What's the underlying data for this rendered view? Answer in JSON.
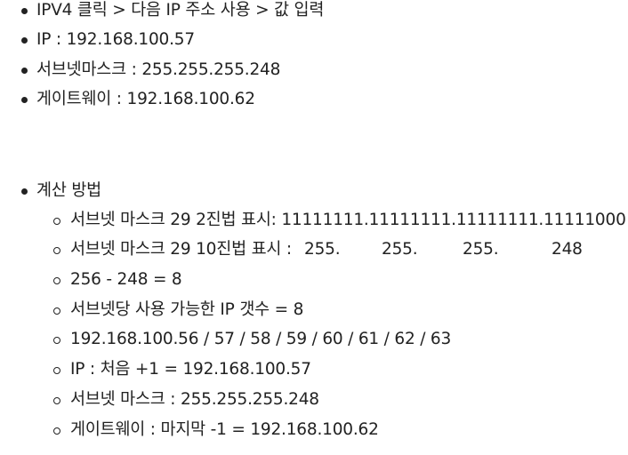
{
  "items_top": [
    "IPV4 클릭 > 다음 IP 주소 사용 > 값 입력",
    "IP : 192.168.100.57",
    "서브넷마스크 : 255.255.255.248",
    "게이트웨이 : 192.168.100.62"
  ],
  "calc": {
    "heading": "계산 방법",
    "binary": "서브넷 마스크 29 2진법 표시: 11111111.11111111.11111111.11111000",
    "decimal_label": "서브넷 마스크 29 10진법 표시 :",
    "decimal_octets": [
      "255.",
      "255.",
      "255.",
      "248"
    ],
    "subtraction": "256 - 248 = 8",
    "host_count": "서브넷당 사용 가능한 IP 갯수 = 8",
    "ip_range": "192.168.100.56 / 57 / 58 / 59 / 60 / 61 / 62 / 63",
    "first_ip": "IP : 처음 +1 = 192.168.100.57",
    "subnet_mask": "서브넷 마스크 : 255.255.255.248",
    "gateway": "게이트웨이 : 마지막 -1 = 192.168.100.62"
  }
}
